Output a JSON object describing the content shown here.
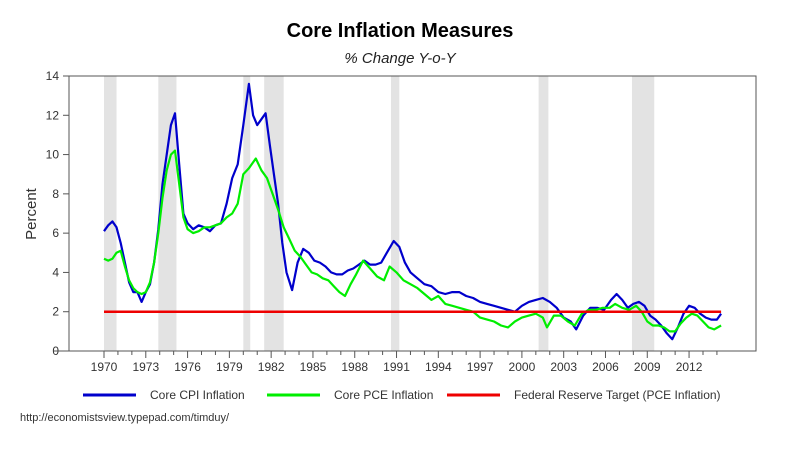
{
  "chart_data": {
    "type": "line",
    "title": "Core Inflation Measures",
    "subtitle": "% Change Y-o-Y",
    "xlabel": "",
    "ylabel": "Percent",
    "xlim": [
      1967.5,
      2016.9
    ],
    "ylim": [
      0,
      14
    ],
    "y_ticks": [
      0,
      2,
      4,
      6,
      8,
      10,
      12,
      14
    ],
    "x_tick_labels": [
      "1970",
      "1973",
      "1976",
      "1979",
      "1982",
      "1985",
      "1988",
      "1991",
      "1994",
      "1997",
      "2000",
      "2003",
      "2006",
      "2009",
      "2012"
    ],
    "x_major_ticks": [
      1970,
      1973,
      1976,
      1979,
      1982,
      1985,
      1988,
      1991,
      1994,
      1997,
      2000,
      2003,
      2006,
      2009,
      2012
    ],
    "x_minor_range": [
      1970,
      2014
    ],
    "grid": false,
    "legend_position": "bottom",
    "recessions": [
      [
        1970.0,
        1970.9
      ],
      [
        1973.9,
        1975.2
      ],
      [
        1980.0,
        1980.5
      ],
      [
        1981.5,
        1982.9
      ],
      [
        1990.6,
        1991.2
      ],
      [
        2001.2,
        2001.9
      ],
      [
        2007.9,
        2009.5
      ]
    ],
    "series": [
      {
        "name": "Core CPI Inflation",
        "color": "#0000cc",
        "x": [
          1970.0,
          1970.3,
          1970.6,
          1970.9,
          1971.2,
          1971.5,
          1971.8,
          1972.1,
          1972.4,
          1972.7,
          1973.0,
          1973.3,
          1973.6,
          1973.9,
          1974.2,
          1974.5,
          1974.8,
          1975.1,
          1975.4,
          1975.7,
          1976.0,
          1976.4,
          1976.8,
          1977.2,
          1977.6,
          1978.0,
          1978.4,
          1978.8,
          1979.2,
          1979.6,
          1980.0,
          1980.4,
          1980.7,
          1981.0,
          1981.3,
          1981.6,
          1981.9,
          1982.2,
          1982.5,
          1982.8,
          1983.1,
          1983.5,
          1983.9,
          1984.3,
          1984.7,
          1985.1,
          1985.5,
          1985.9,
          1986.3,
          1986.7,
          1987.1,
          1987.5,
          1987.9,
          1988.3,
          1988.7,
          1989.1,
          1989.5,
          1989.9,
          1990.3,
          1990.8,
          1991.2,
          1991.6,
          1992.0,
          1992.5,
          1993.0,
          1993.5,
          1994.0,
          1994.5,
          1995.0,
          1995.5,
          1996.0,
          1996.5,
          1997.0,
          1997.5,
          1998.0,
          1998.5,
          1999.0,
          1999.5,
          2000.0,
          2000.5,
          2001.0,
          2001.5,
          2002.0,
          2002.5,
          2003.0,
          2003.5,
          2003.9,
          2004.4,
          2004.9,
          2005.4,
          2005.9,
          2006.4,
          2006.8,
          2007.2,
          2007.6,
          2008.0,
          2008.4,
          2008.8,
          2009.2,
          2009.6,
          2010.0,
          2010.4,
          2010.8,
          2011.2,
          2011.6,
          2012.0,
          2012.4,
          2012.8,
          2013.2,
          2013.6,
          2014.0,
          2014.3
        ],
        "values": [
          6.1,
          6.4,
          6.6,
          6.3,
          5.5,
          4.5,
          3.5,
          3.0,
          3.0,
          2.5,
          3.0,
          3.4,
          4.5,
          6.2,
          8.5,
          10.0,
          11.5,
          12.1,
          9.5,
          7.0,
          6.5,
          6.2,
          6.4,
          6.3,
          6.1,
          6.4,
          6.5,
          7.5,
          8.8,
          9.5,
          11.5,
          13.6,
          12.0,
          11.5,
          11.8,
          12.1,
          10.5,
          9.0,
          7.5,
          5.5,
          4.0,
          3.1,
          4.5,
          5.2,
          5.0,
          4.6,
          4.5,
          4.3,
          4.0,
          3.9,
          3.9,
          4.1,
          4.2,
          4.4,
          4.6,
          4.4,
          4.4,
          4.5,
          5.0,
          5.6,
          5.3,
          4.5,
          4.0,
          3.7,
          3.4,
          3.3,
          3.0,
          2.9,
          3.0,
          3.0,
          2.8,
          2.7,
          2.5,
          2.4,
          2.3,
          2.2,
          2.1,
          2.0,
          2.3,
          2.5,
          2.6,
          2.7,
          2.5,
          2.2,
          1.7,
          1.5,
          1.1,
          1.8,
          2.2,
          2.2,
          2.1,
          2.6,
          2.9,
          2.6,
          2.2,
          2.4,
          2.5,
          2.3,
          1.8,
          1.6,
          1.3,
          0.9,
          0.6,
          1.2,
          1.9,
          2.3,
          2.2,
          1.9,
          1.7,
          1.6,
          1.6,
          1.9
        ]
      },
      {
        "name": "Core PCE Inflation",
        "color": "#00ee00",
        "x": [
          1970.0,
          1970.3,
          1970.6,
          1970.9,
          1971.2,
          1971.5,
          1971.8,
          1972.1,
          1972.4,
          1972.7,
          1973.0,
          1973.3,
          1973.6,
          1973.9,
          1974.2,
          1974.5,
          1974.8,
          1975.1,
          1975.4,
          1975.7,
          1976.0,
          1976.4,
          1976.8,
          1977.2,
          1977.6,
          1978.0,
          1978.4,
          1978.8,
          1979.2,
          1979.6,
          1980.0,
          1980.4,
          1980.9,
          1981.3,
          1981.7,
          1982.1,
          1982.5,
          1982.9,
          1983.3,
          1983.7,
          1984.1,
          1984.5,
          1984.9,
          1985.3,
          1985.7,
          1986.1,
          1986.5,
          1986.9,
          1987.3,
          1987.7,
          1988.1,
          1988.6,
          1989.1,
          1989.6,
          1990.1,
          1990.5,
          1991.0,
          1991.5,
          1992.0,
          1992.5,
          1993.0,
          1993.5,
          1994.0,
          1994.5,
          1995.0,
          1995.5,
          1996.0,
          1996.5,
          1997.0,
          1997.5,
          1998.0,
          1998.5,
          1999.0,
          1999.5,
          2000.0,
          2000.5,
          2001.0,
          2001.5,
          2001.8,
          2002.3,
          2002.8,
          2003.3,
          2003.8,
          2004.3,
          2004.8,
          2005.3,
          2005.8,
          2006.3,
          2006.7,
          2007.2,
          2007.7,
          2008.2,
          2008.6,
          2009.0,
          2009.4,
          2009.8,
          2010.2,
          2010.6,
          2011.0,
          2011.4,
          2011.8,
          2012.2,
          2012.6,
          2013.0,
          2013.4,
          2013.8,
          2014.3
        ],
        "values": [
          4.7,
          4.6,
          4.7,
          5.0,
          5.1,
          4.3,
          3.6,
          3.2,
          3.0,
          2.9,
          3.0,
          3.5,
          4.5,
          6.0,
          7.8,
          9.2,
          10.0,
          10.2,
          8.5,
          6.8,
          6.2,
          6.0,
          6.1,
          6.3,
          6.3,
          6.4,
          6.5,
          6.8,
          7.0,
          7.5,
          9.0,
          9.3,
          9.8,
          9.2,
          8.8,
          8.0,
          7.2,
          6.3,
          5.7,
          5.1,
          4.8,
          4.4,
          4.0,
          3.9,
          3.7,
          3.6,
          3.3,
          3.0,
          2.8,
          3.4,
          3.9,
          4.6,
          4.2,
          3.8,
          3.6,
          4.3,
          4.0,
          3.6,
          3.4,
          3.2,
          2.9,
          2.6,
          2.8,
          2.4,
          2.3,
          2.2,
          2.1,
          2.0,
          1.7,
          1.6,
          1.5,
          1.3,
          1.2,
          1.5,
          1.7,
          1.8,
          1.9,
          1.7,
          1.2,
          1.8,
          1.8,
          1.5,
          1.3,
          1.9,
          2.1,
          2.1,
          2.2,
          2.2,
          2.4,
          2.2,
          2.1,
          2.3,
          2.0,
          1.5,
          1.3,
          1.3,
          1.2,
          1.0,
          1.0,
          1.4,
          1.7,
          1.9,
          1.8,
          1.5,
          1.2,
          1.1,
          1.3
        ]
      },
      {
        "name": "Federal Reserve Target (PCE Inflation)",
        "color": "#ee0000",
        "x": [
          1970.0,
          2014.3
        ],
        "values": [
          2.0,
          2.0
        ]
      }
    ]
  },
  "source_text": "http://economistsview.typepad.com/timduy/"
}
